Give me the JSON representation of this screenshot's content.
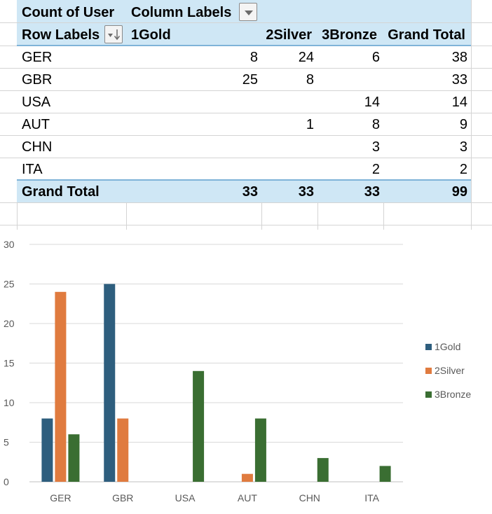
{
  "pivot": {
    "corner_label": "Count of User",
    "column_labels": "Column Labels",
    "row_labels": "Row Labels",
    "columns": [
      "1Gold",
      "2Silver",
      "3Bronze",
      "Grand Total"
    ],
    "rows": [
      {
        "label": "GER",
        "cells": [
          "8",
          "24",
          "6",
          "38"
        ]
      },
      {
        "label": "GBR",
        "cells": [
          "25",
          "8",
          "",
          "33"
        ]
      },
      {
        "label": "USA",
        "cells": [
          "",
          "",
          "14",
          "14"
        ]
      },
      {
        "label": "AUT",
        "cells": [
          "",
          "1",
          "8",
          "9"
        ]
      },
      {
        "label": "CHN",
        "cells": [
          "",
          "",
          "3",
          "3"
        ]
      },
      {
        "label": "ITA",
        "cells": [
          "",
          "",
          "2",
          "2"
        ]
      }
    ],
    "grand_total": {
      "label": "Grand Total",
      "cells": [
        "33",
        "33",
        "33",
        "99"
      ]
    }
  },
  "chart_data": {
    "type": "bar",
    "title": "",
    "xlabel": "",
    "ylabel": "",
    "categories": [
      "GER",
      "GBR",
      "USA",
      "AUT",
      "CHN",
      "ITA"
    ],
    "series": [
      {
        "name": "1Gold",
        "color": "#2e5e7e",
        "values": [
          8,
          25,
          0,
          0,
          0,
          0
        ]
      },
      {
        "name": "2Silver",
        "color": "#e07b3f",
        "values": [
          24,
          8,
          0,
          1,
          0,
          0
        ]
      },
      {
        "name": "3Bronze",
        "color": "#3a6e32",
        "values": [
          6,
          0,
          14,
          8,
          3,
          2
        ]
      }
    ],
    "yticks": [
      0,
      5,
      10,
      15,
      20,
      25,
      30
    ],
    "ylim": [
      0,
      30
    ],
    "grid": true,
    "legend_position": "right"
  }
}
